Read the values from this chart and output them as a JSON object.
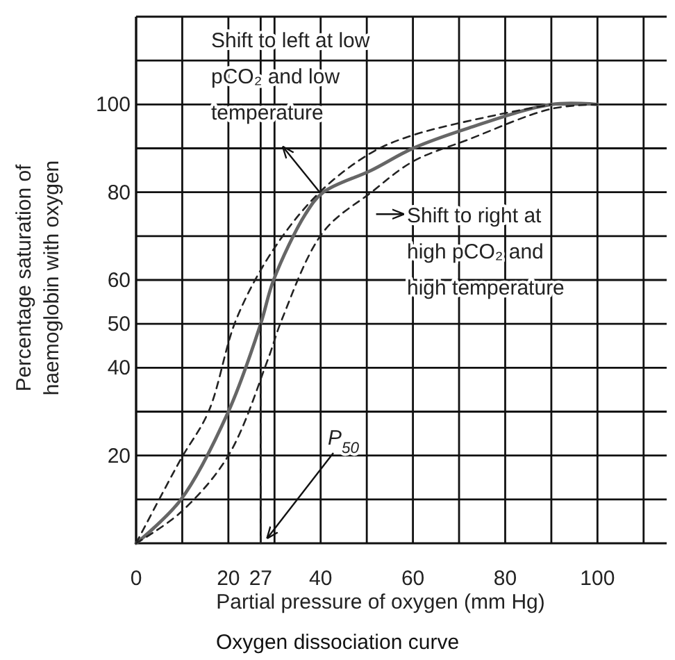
{
  "chart_data": {
    "type": "line",
    "title": "Oxygen dissociation curve",
    "xlabel": "Partial pressure of oxygen (mm Hg)",
    "ylabel": "Percentage saturation of haemoglobin with oxygen",
    "xlim": [
      0,
      115
    ],
    "ylim": [
      0,
      120
    ],
    "xticks": [
      0,
      {
        "value": 10,
        "label": null
      },
      20,
      27,
      {
        "value": 30,
        "label": null
      },
      40,
      {
        "value": 50,
        "label": null
      },
      60,
      {
        "value": 70,
        "label": null
      },
      80,
      {
        "value": 90,
        "label": null
      },
      100,
      {
        "value": 110,
        "label": null
      }
    ],
    "yticks": [
      {
        "value": 10,
        "label": null
      },
      20,
      {
        "value": 30,
        "label": null
      },
      40,
      50,
      60,
      {
        "value": 70,
        "label": null
      },
      80,
      {
        "value": 90,
        "label": null
      },
      100,
      {
        "value": 110,
        "label": null
      }
    ],
    "grid": true,
    "series": [
      {
        "color": "#666666",
        "line_style": "solid",
        "x": [
          0,
          9.6,
          20,
          27,
          29.8,
          36.7,
          40.6,
          51,
          60,
          72,
          90,
          100
        ],
        "values": [
          0,
          9.8,
          30,
          50,
          60,
          75,
          80,
          85,
          90,
          94.6,
          100,
          100
        ]
      },
      {
        "color": "#222222",
        "line_style": "dashed",
        "x": [
          0,
          9.6,
          15.7,
          21.7,
          29.8,
          39.8,
          51,
          60,
          79,
          90
        ],
        "values": [
          0,
          19,
          30,
          51,
          67,
          80,
          89,
          93,
          97.8,
          100
        ]
      },
      {
        "color": "#222222",
        "line_style": "dashed",
        "x": [
          0,
          9.6,
          20,
          28.6,
          31.6,
          40.6,
          51,
          60,
          72,
          90,
          100
        ],
        "values": [
          0,
          7,
          20,
          42,
          51,
          71,
          80,
          87,
          92,
          99,
          100
        ]
      },
      {
        "color": "#222222",
        "line_style": "dashed",
        "x": [
          27,
          27
        ],
        "values": [
          0,
          50
        ]
      }
    ],
    "annotations": [
      {
        "text": "Shift to left at low pCO₂ and low temperature",
        "x": 39.8,
        "y": 80
      },
      {
        "text": "Shift to right at high pCO₂ and high temperature",
        "x": 46,
        "y": 75
      },
      {
        "text": "P$_{50}$",
        "x": 27,
        "y": 0
      }
    ]
  }
}
